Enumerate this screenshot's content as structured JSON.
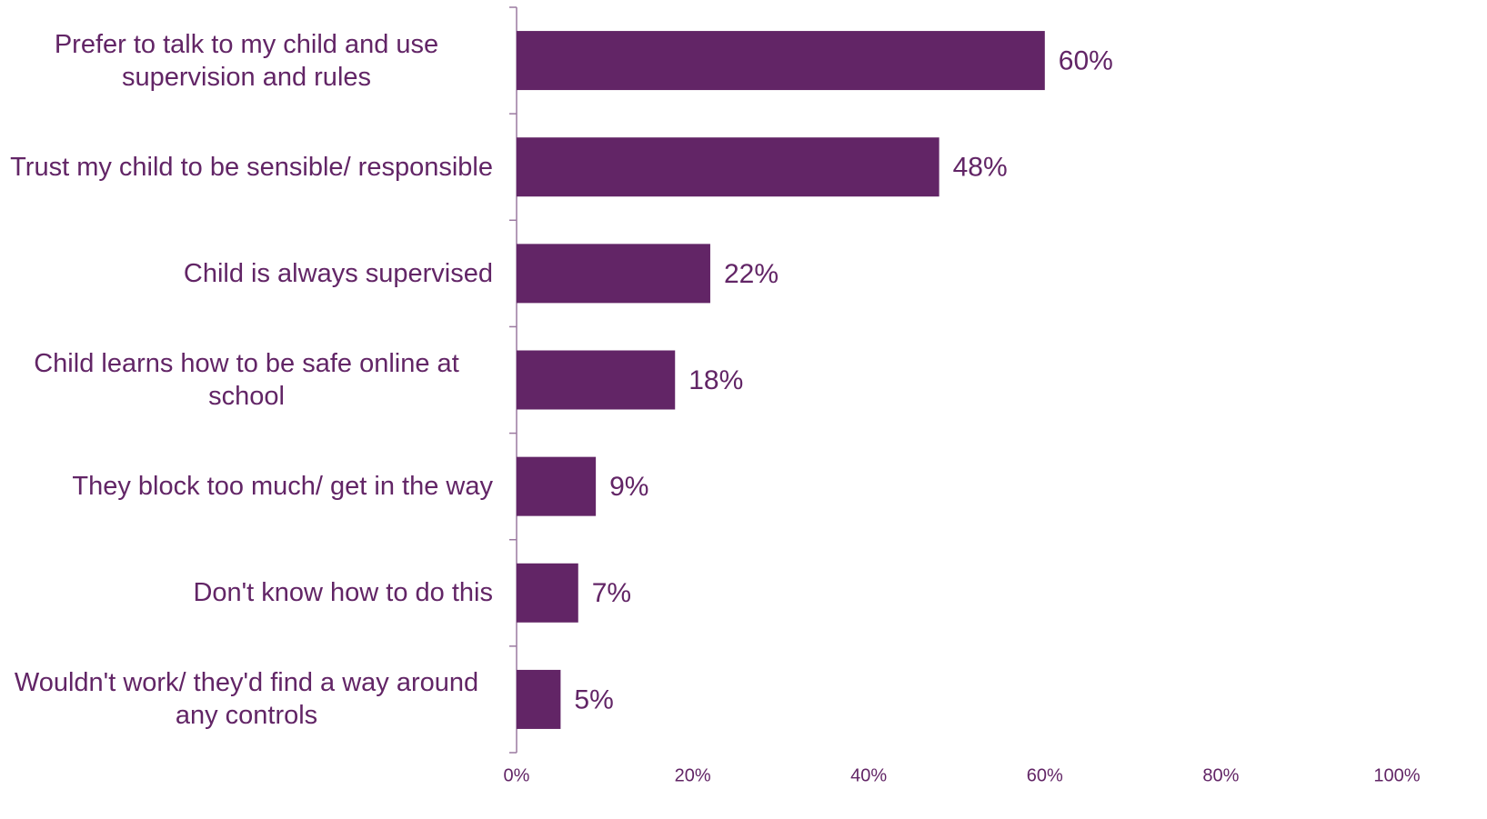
{
  "chart_data": {
    "type": "bar",
    "orientation": "horizontal",
    "categories": [
      "Prefer to talk to my child and use supervision and rules",
      "Trust my child to be sensible/ responsible",
      "Child is always supervised",
      "Child learns how to be safe online at school",
      "They block too much/ get in the way",
      "Don't know how to do this",
      "Wouldn't work/ they'd find a way around any controls"
    ],
    "values": [
      60,
      48,
      22,
      18,
      9,
      7,
      5
    ],
    "value_labels": [
      "60%",
      "48%",
      "22%",
      "18%",
      "9%",
      "7%",
      "5%"
    ],
    "color": "#622566",
    "xlim": [
      0,
      100
    ],
    "xticks": [
      {
        "value": 0,
        "label": "0%"
      },
      {
        "value": 20,
        "label": "20%"
      },
      {
        "value": 40,
        "label": "40%"
      },
      {
        "value": 60,
        "label": "60%"
      },
      {
        "value": 80,
        "label": "80%"
      },
      {
        "value": 100,
        "label": "100%"
      }
    ],
    "grid": false
  }
}
